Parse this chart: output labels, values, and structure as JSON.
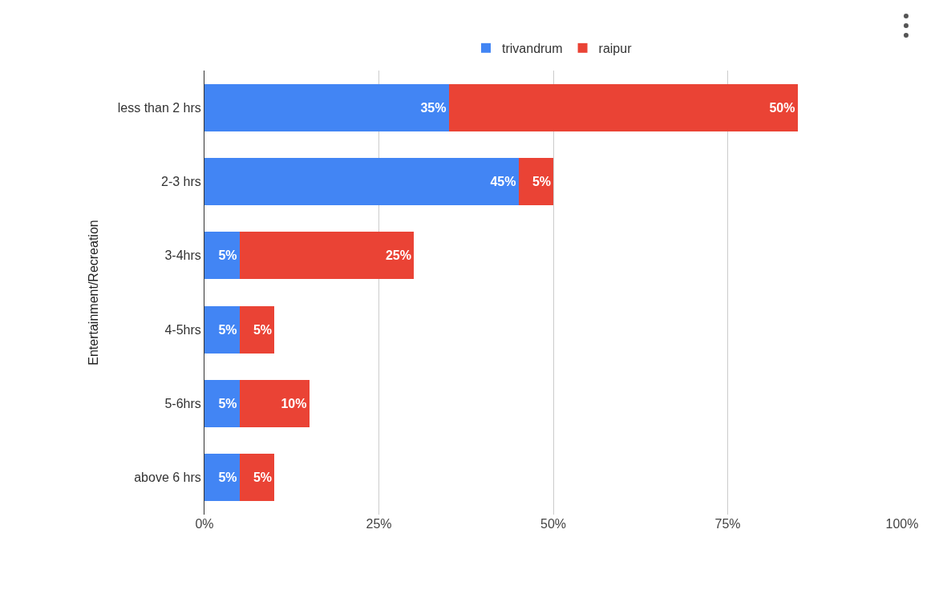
{
  "chart_data": {
    "type": "bar",
    "orientation": "horizontal",
    "stacked": true,
    "ylabel": "Entertainment/Recreation",
    "categories": [
      "less than 2 hrs",
      "2-3 hrs",
      "3-4hrs",
      "4-5hrs",
      "5-6hrs",
      "above 6 hrs"
    ],
    "series": [
      {
        "name": "trivandrum",
        "color": "#4285f4",
        "values": [
          35,
          45,
          5,
          5,
          5,
          5
        ],
        "value_labels": [
          "35%",
          "45%",
          "5%",
          "5%",
          "5%",
          "5%"
        ]
      },
      {
        "name": "raipur",
        "color": "#ea4335",
        "values": [
          50,
          5,
          25,
          5,
          10,
          5
        ],
        "value_labels": [
          "50%",
          "5%",
          "25%",
          "5%",
          "10%",
          "5%"
        ]
      }
    ],
    "xlim": [
      0,
      100
    ],
    "xticks": [
      {
        "value": 0,
        "label": "0%"
      },
      {
        "value": 25,
        "label": "25%"
      },
      {
        "value": 50,
        "label": "50%"
      },
      {
        "value": 75,
        "label": "75%"
      },
      {
        "value": 100,
        "label": "100%"
      }
    ],
    "grid": "x",
    "legend": "top"
  }
}
